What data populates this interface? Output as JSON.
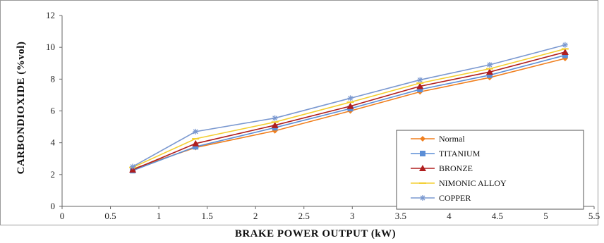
{
  "chart_data": {
    "type": "line",
    "xlabel": "BRAKE POWER OUTPUT (kW)",
    "ylabel": "CARBONDIOXIDE (%vol)",
    "xlim": [
      0,
      5.5
    ],
    "ylim": [
      0,
      12
    ],
    "xticks": [
      "0",
      "0.5",
      "1",
      "1.5",
      "2",
      "2.5",
      "3",
      "3.5",
      "4",
      "4.5",
      "5",
      "5.5"
    ],
    "yticks": [
      "0",
      "2",
      "4",
      "6",
      "8",
      "10",
      "12"
    ],
    "grid": false,
    "legend_position": "bottom-right",
    "x": [
      0.73,
      1.38,
      2.2,
      2.98,
      3.7,
      4.42,
      5.2
    ],
    "series": [
      {
        "name": "Normal",
        "color": "#f07f1e",
        "marker": "diamond",
        "values": [
          2.35,
          3.7,
          4.75,
          6.0,
          7.2,
          8.1,
          9.3
        ]
      },
      {
        "name": "TITANIUM",
        "color": "#5b8ed6",
        "marker": "square",
        "values": [
          2.25,
          3.75,
          4.95,
          6.15,
          7.35,
          8.25,
          9.5
        ]
      },
      {
        "name": "BRONZE",
        "color": "#b01e1e",
        "marker": "triangle",
        "values": [
          2.3,
          3.95,
          5.1,
          6.3,
          7.55,
          8.45,
          9.7
        ]
      },
      {
        "name": "NIMONIC ALLOY",
        "color": "#f3cf32",
        "marker": "dash",
        "values": [
          2.45,
          4.25,
          5.3,
          6.55,
          7.75,
          8.65,
          9.9
        ]
      },
      {
        "name": "COPPER",
        "color": "#7a98d0",
        "marker": "star",
        "values": [
          2.5,
          4.7,
          5.55,
          6.8,
          7.95,
          8.9,
          10.15
        ]
      }
    ]
  }
}
